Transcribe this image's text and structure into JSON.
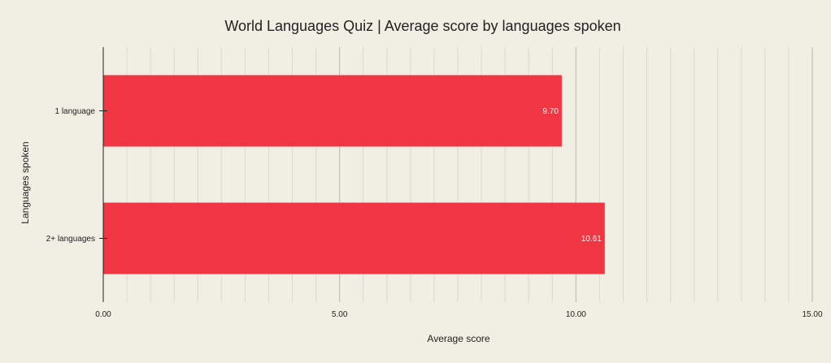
{
  "chart_data": {
    "type": "bar",
    "orientation": "horizontal",
    "title": "World Languages Quiz | Average score by languages spoken",
    "xlabel": "Average score",
    "ylabel": "Languages spoken",
    "categories": [
      "1 language",
      "2+ languages"
    ],
    "values": [
      9.7,
      10.61
    ],
    "data_labels": [
      "9.70",
      "10.61"
    ],
    "xlim": [
      0,
      15
    ],
    "x_ticks": [
      0,
      5,
      10,
      15
    ],
    "x_tick_labels": [
      "0.00",
      "5.00",
      "10.00",
      "15.00"
    ],
    "grid": true,
    "legend": "none",
    "colors": {
      "bar": "#f03543",
      "background": "#f1eee3",
      "major_grid": "#b8b6ae",
      "minor_grid": "#dcd9cf"
    }
  }
}
